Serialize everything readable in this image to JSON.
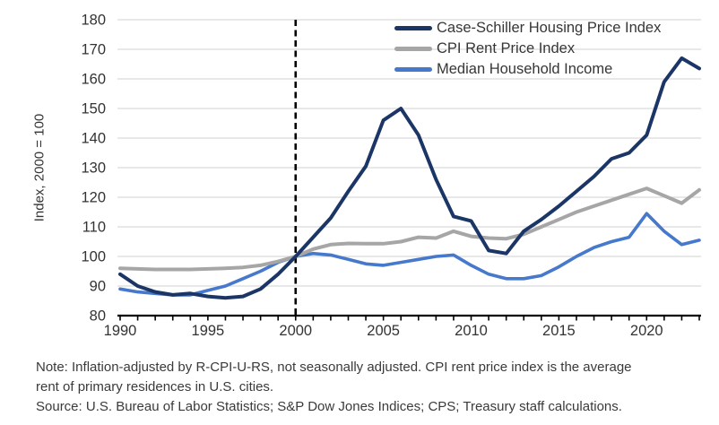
{
  "chart_data": {
    "type": "line",
    "title": "",
    "xlabel": "",
    "ylabel": "Index, 2000 = 100",
    "x_range": [
      1990,
      2023
    ],
    "ylim": [
      80,
      180
    ],
    "y_ticks": [
      80,
      90,
      100,
      110,
      120,
      130,
      140,
      150,
      160,
      170,
      180
    ],
    "x_tick_labels": [
      "1990",
      "1995",
      "2000",
      "2005",
      "2010",
      "2015",
      "2020"
    ],
    "x_minor_tick_step": 1,
    "grid": "horizontal",
    "gridline_color": "#d9d9d9",
    "axis_color": "#000000",
    "reference_line": {
      "x": 2000,
      "style": "dashed",
      "color": "#000000"
    },
    "legend_position": "top-right",
    "x": [
      1990,
      1991,
      1992,
      1993,
      1994,
      1995,
      1996,
      1997,
      1998,
      1999,
      2000,
      2001,
      2002,
      2003,
      2004,
      2005,
      2006,
      2007,
      2008,
      2009,
      2010,
      2011,
      2012,
      2013,
      2014,
      2015,
      2016,
      2017,
      2018,
      2019,
      2020,
      2021,
      2022,
      2023
    ],
    "series": [
      {
        "name": "Case-Schiller Housing Price Index",
        "color": "#1b3666",
        "line_width": 4,
        "values": [
          94,
          90,
          88,
          87,
          87.5,
          86.5,
          86,
          86.5,
          89,
          94,
          100,
          106.5,
          113,
          122,
          130.5,
          146,
          150,
          141,
          126,
          113.5,
          112,
          102,
          101,
          108.5,
          112.5,
          117,
          122,
          127,
          133,
          135,
          141,
          159,
          167,
          163.5
        ]
      },
      {
        "name": "CPI Rent Price Index",
        "color": "#a6a6a6",
        "line_width": 4,
        "values": [
          96,
          95.8,
          95.6,
          95.6,
          95.6,
          95.8,
          96,
          96.3,
          97,
          98.3,
          100,
          102.5,
          104,
          104.4,
          104.3,
          104.3,
          105,
          106.5,
          106.2,
          108.5,
          106.8,
          106.2,
          106,
          107.5,
          110,
          112.5,
          115,
          117,
          119,
          121,
          123,
          120.5,
          118,
          122.5
        ]
      },
      {
        "name": "Median Household Income",
        "color": "#4678cc",
        "line_width": 3.6,
        "values": [
          89,
          88,
          87.5,
          87,
          87,
          88.5,
          90,
          92.5,
          95,
          98,
          100,
          101,
          100.5,
          99,
          97.5,
          97,
          98,
          99,
          100,
          100.5,
          97,
          94,
          92.5,
          92.5,
          93.5,
          96.5,
          100,
          103,
          105,
          106.5,
          114.5,
          108.5,
          104,
          105.5
        ]
      }
    ]
  },
  "notes": {
    "line1": "Note: Inflation-adjusted by R-CPI-U-RS, not seasonally adjusted. CPI rent price index is the average",
    "line2": "rent of primary residences in U.S. cities.",
    "source": "Source: U.S. Bureau of Labor Statistics; S&P Dow Jones Indices; CPS; Treasury staff calculations."
  }
}
